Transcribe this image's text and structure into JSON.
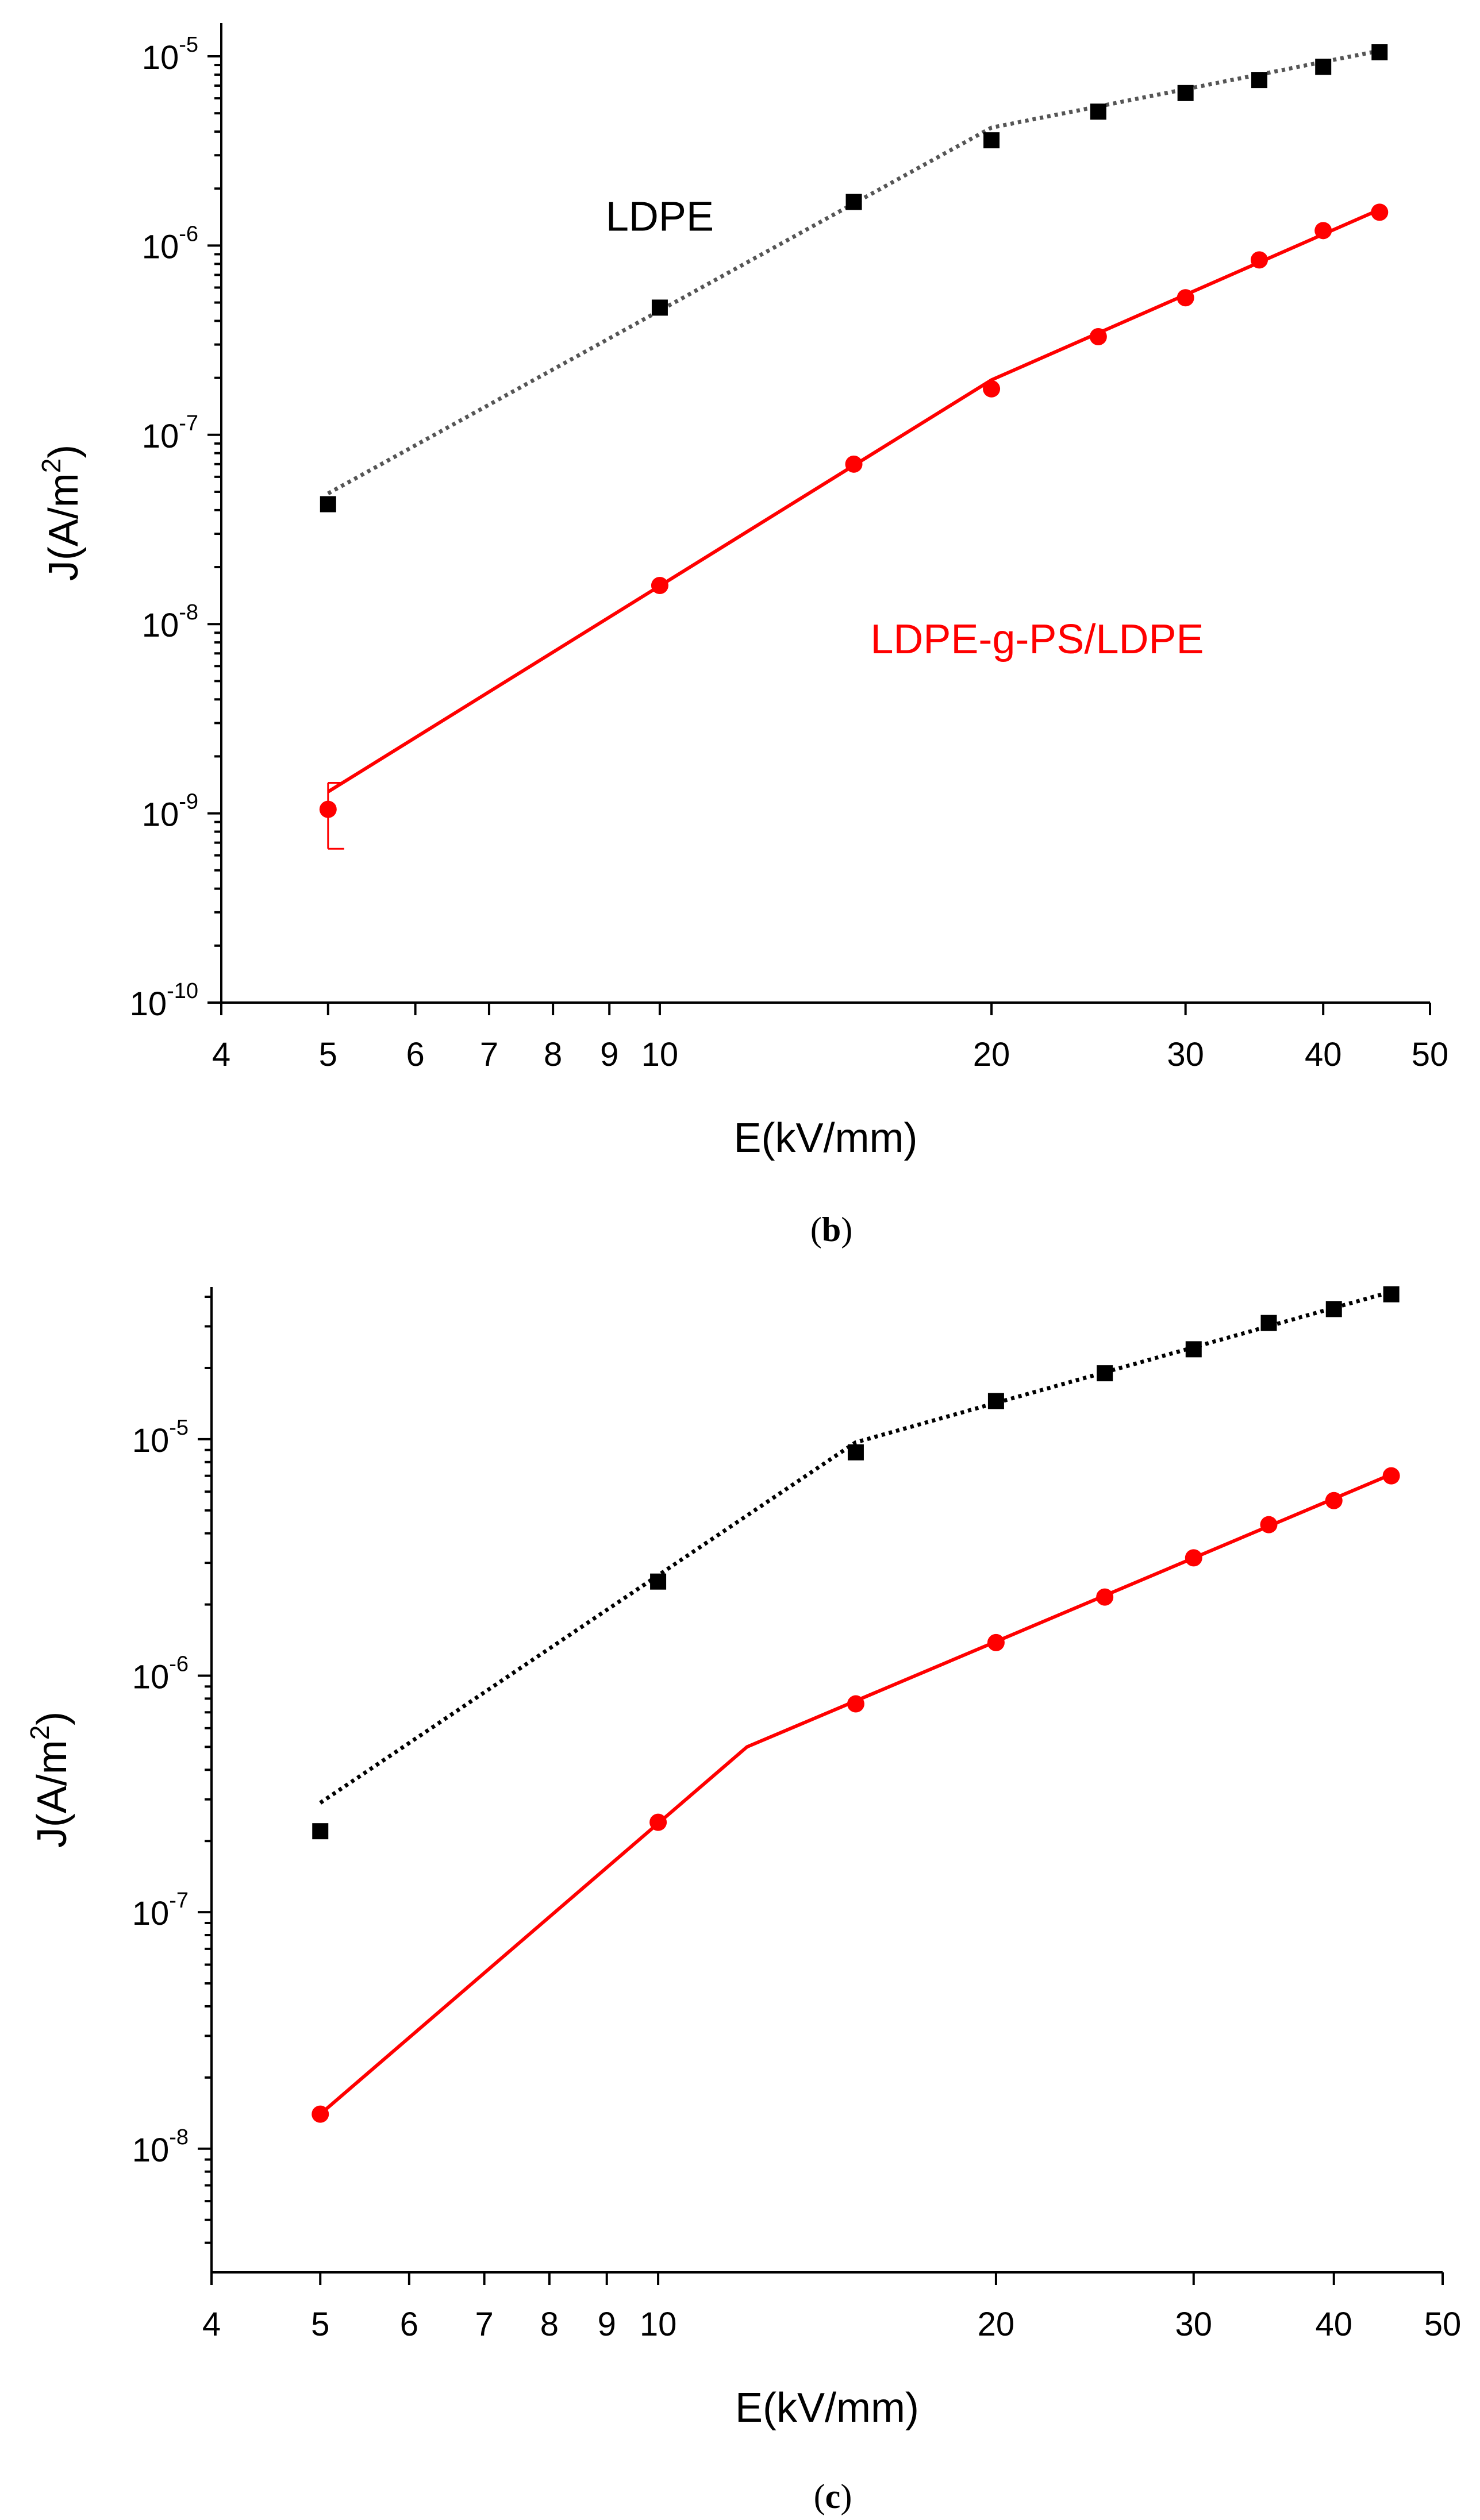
{
  "chart_data": [
    {
      "type": "scatter",
      "panel": "b",
      "caption_open": "(",
      "caption_letter": "b",
      "caption_close": ")",
      "xlabel": "E(kV/mm)",
      "ylabel_prefix": "J(A/m",
      "ylabel_sup": "2",
      "ylabel_suffix": ")",
      "xscale": "log",
      "yscale": "log",
      "xlim": [
        4,
        50
      ],
      "ylim": [
        1e-10,
        1.5e-05
      ],
      "xticks": [
        {
          "value": 4,
          "label": "4"
        },
        {
          "value": 5,
          "label": "5"
        },
        {
          "value": 6,
          "label": "6"
        },
        {
          "value": 7,
          "label": "7"
        },
        {
          "value": 8,
          "label": "8"
        },
        {
          "value": 9,
          "label": "9"
        },
        {
          "value": 10,
          "label": "10"
        },
        {
          "value": 20,
          "label": "20"
        },
        {
          "value": 30,
          "label": "30"
        },
        {
          "value": 40,
          "label": "40"
        },
        {
          "value": 50,
          "label": "50"
        }
      ],
      "yticks": [
        {
          "value": 1e-10,
          "base": "10",
          "exp": "-10"
        },
        {
          "value": 1e-09,
          "base": "10",
          "exp": "-9"
        },
        {
          "value": 1e-08,
          "base": "10",
          "exp": "-8"
        },
        {
          "value": 1e-07,
          "base": "10",
          "exp": "-7"
        },
        {
          "value": 1e-06,
          "base": "10",
          "exp": "-6"
        },
        {
          "value": 1e-05,
          "base": "10",
          "exp": "-5"
        }
      ],
      "annotations": [
        {
          "text": "LDPE",
          "x": 10,
          "y": 1.2e-06,
          "color": "#000000"
        },
        {
          "text": "LDPE-g-PS/LDPE",
          "x": 22,
          "y": 7e-09,
          "color": "#ff0000"
        }
      ],
      "series": [
        {
          "name": "LDPE",
          "color": "#000000",
          "marker": "square",
          "points": [
            {
              "x": 5,
              "y": 4.3e-08
            },
            {
              "x": 10,
              "y": 4.7e-07
            },
            {
              "x": 15,
              "y": 1.7e-06
            },
            {
              "x": 20,
              "y": 3.6e-06
            },
            {
              "x": 25,
              "y": 5.1e-06
            },
            {
              "x": 30,
              "y": 6.4e-06
            },
            {
              "x": 35,
              "y": 7.5e-06
            },
            {
              "x": 40,
              "y": 8.8e-06
            },
            {
              "x": 45,
              "y": 1.05e-05
            }
          ],
          "fit": {
            "style": "dotted",
            "color": "#555555",
            "x": [
              5,
              20,
              45
            ],
            "y": [
              4.9e-08,
              4.2e-06,
              1.07e-05
            ]
          }
        },
        {
          "name": "LDPE-g-PS/LDPE",
          "color": "#ff0000",
          "marker": "circle",
          "points": [
            {
              "x": 5,
              "y": 1.05e-09,
              "err_low": 6.5e-10,
              "err_high": 1.45e-09
            },
            {
              "x": 10,
              "y": 1.6e-08
            },
            {
              "x": 15,
              "y": 7e-08
            },
            {
              "x": 20,
              "y": 1.75e-07
            },
            {
              "x": 25,
              "y": 3.3e-07
            },
            {
              "x": 30,
              "y": 5.3e-07
            },
            {
              "x": 35,
              "y": 8.4e-07
            },
            {
              "x": 40,
              "y": 1.2e-06
            },
            {
              "x": 45,
              "y": 1.5e-06
            }
          ],
          "fit": {
            "style": "solid",
            "color": "#ff0000",
            "x": [
              5,
              20,
              45
            ],
            "y": [
              1.3e-09,
              1.95e-07,
              1.55e-06
            ]
          }
        }
      ]
    },
    {
      "type": "scatter",
      "panel": "c",
      "caption_open": "(",
      "caption_letter": "c",
      "caption_close": ")",
      "xlabel": "E(kV/mm)",
      "ylabel_prefix": "J(A/m",
      "ylabel_sup": "2",
      "ylabel_suffix": ")",
      "xscale": "log",
      "yscale": "log",
      "xlim": [
        4,
        50
      ],
      "ylim": [
        3e-09,
        4.4e-05
      ],
      "xticks": [
        {
          "value": 4,
          "label": "4"
        },
        {
          "value": 5,
          "label": "5"
        },
        {
          "value": 6,
          "label": "6"
        },
        {
          "value": 7,
          "label": "7"
        },
        {
          "value": 8,
          "label": "8"
        },
        {
          "value": 9,
          "label": "9"
        },
        {
          "value": 10,
          "label": "10"
        },
        {
          "value": 20,
          "label": "20"
        },
        {
          "value": 30,
          "label": "30"
        },
        {
          "value": 40,
          "label": "40"
        },
        {
          "value": 50,
          "label": "50"
        }
      ],
      "yticks": [
        {
          "value": 1e-08,
          "base": "10",
          "exp": "-8"
        },
        {
          "value": 1e-07,
          "base": "10",
          "exp": "-7"
        },
        {
          "value": 1e-06,
          "base": "10",
          "exp": "-6"
        },
        {
          "value": 1e-05,
          "base": "10",
          "exp": "-5"
        }
      ],
      "annotations": [],
      "series": [
        {
          "name": "LDPE",
          "color": "#000000",
          "marker": "square",
          "points": [
            {
              "x": 5,
              "y": 2.2e-07
            },
            {
              "x": 10,
              "y": 2.5e-06
            },
            {
              "x": 15,
              "y": 8.8e-06
            },
            {
              "x": 20,
              "y": 1.45e-05
            },
            {
              "x": 25,
              "y": 1.9e-05
            },
            {
              "x": 30,
              "y": 2.4e-05
            },
            {
              "x": 35,
              "y": 3.1e-05
            },
            {
              "x": 40,
              "y": 3.55e-05
            },
            {
              "x": 45,
              "y": 4.1e-05
            }
          ],
          "fit": {
            "style": "dotted",
            "color": "#000000",
            "x": [
              5,
              15,
              45
            ],
            "y": [
              2.9e-07,
              9.7e-06,
              4.2e-05
            ]
          }
        },
        {
          "name": "LDPE-g-PS/LDPE",
          "color": "#ff0000",
          "marker": "circle",
          "points": [
            {
              "x": 5,
              "y": 1.4e-08
            },
            {
              "x": 10,
              "y": 2.4e-07
            },
            {
              "x": 15,
              "y": 7.6e-07
            },
            {
              "x": 20,
              "y": 1.38e-06
            },
            {
              "x": 25,
              "y": 2.15e-06
            },
            {
              "x": 30,
              "y": 3.15e-06
            },
            {
              "x": 35,
              "y": 4.35e-06
            },
            {
              "x": 40,
              "y": 5.5e-06
            },
            {
              "x": 45,
              "y": 7e-06
            }
          ],
          "fit": {
            "style": "solid",
            "color": "#ff0000",
            "x": [
              5,
              12,
              45
            ],
            "y": [
              1.4e-08,
              5e-07,
              7.1e-06
            ]
          }
        }
      ]
    }
  ]
}
